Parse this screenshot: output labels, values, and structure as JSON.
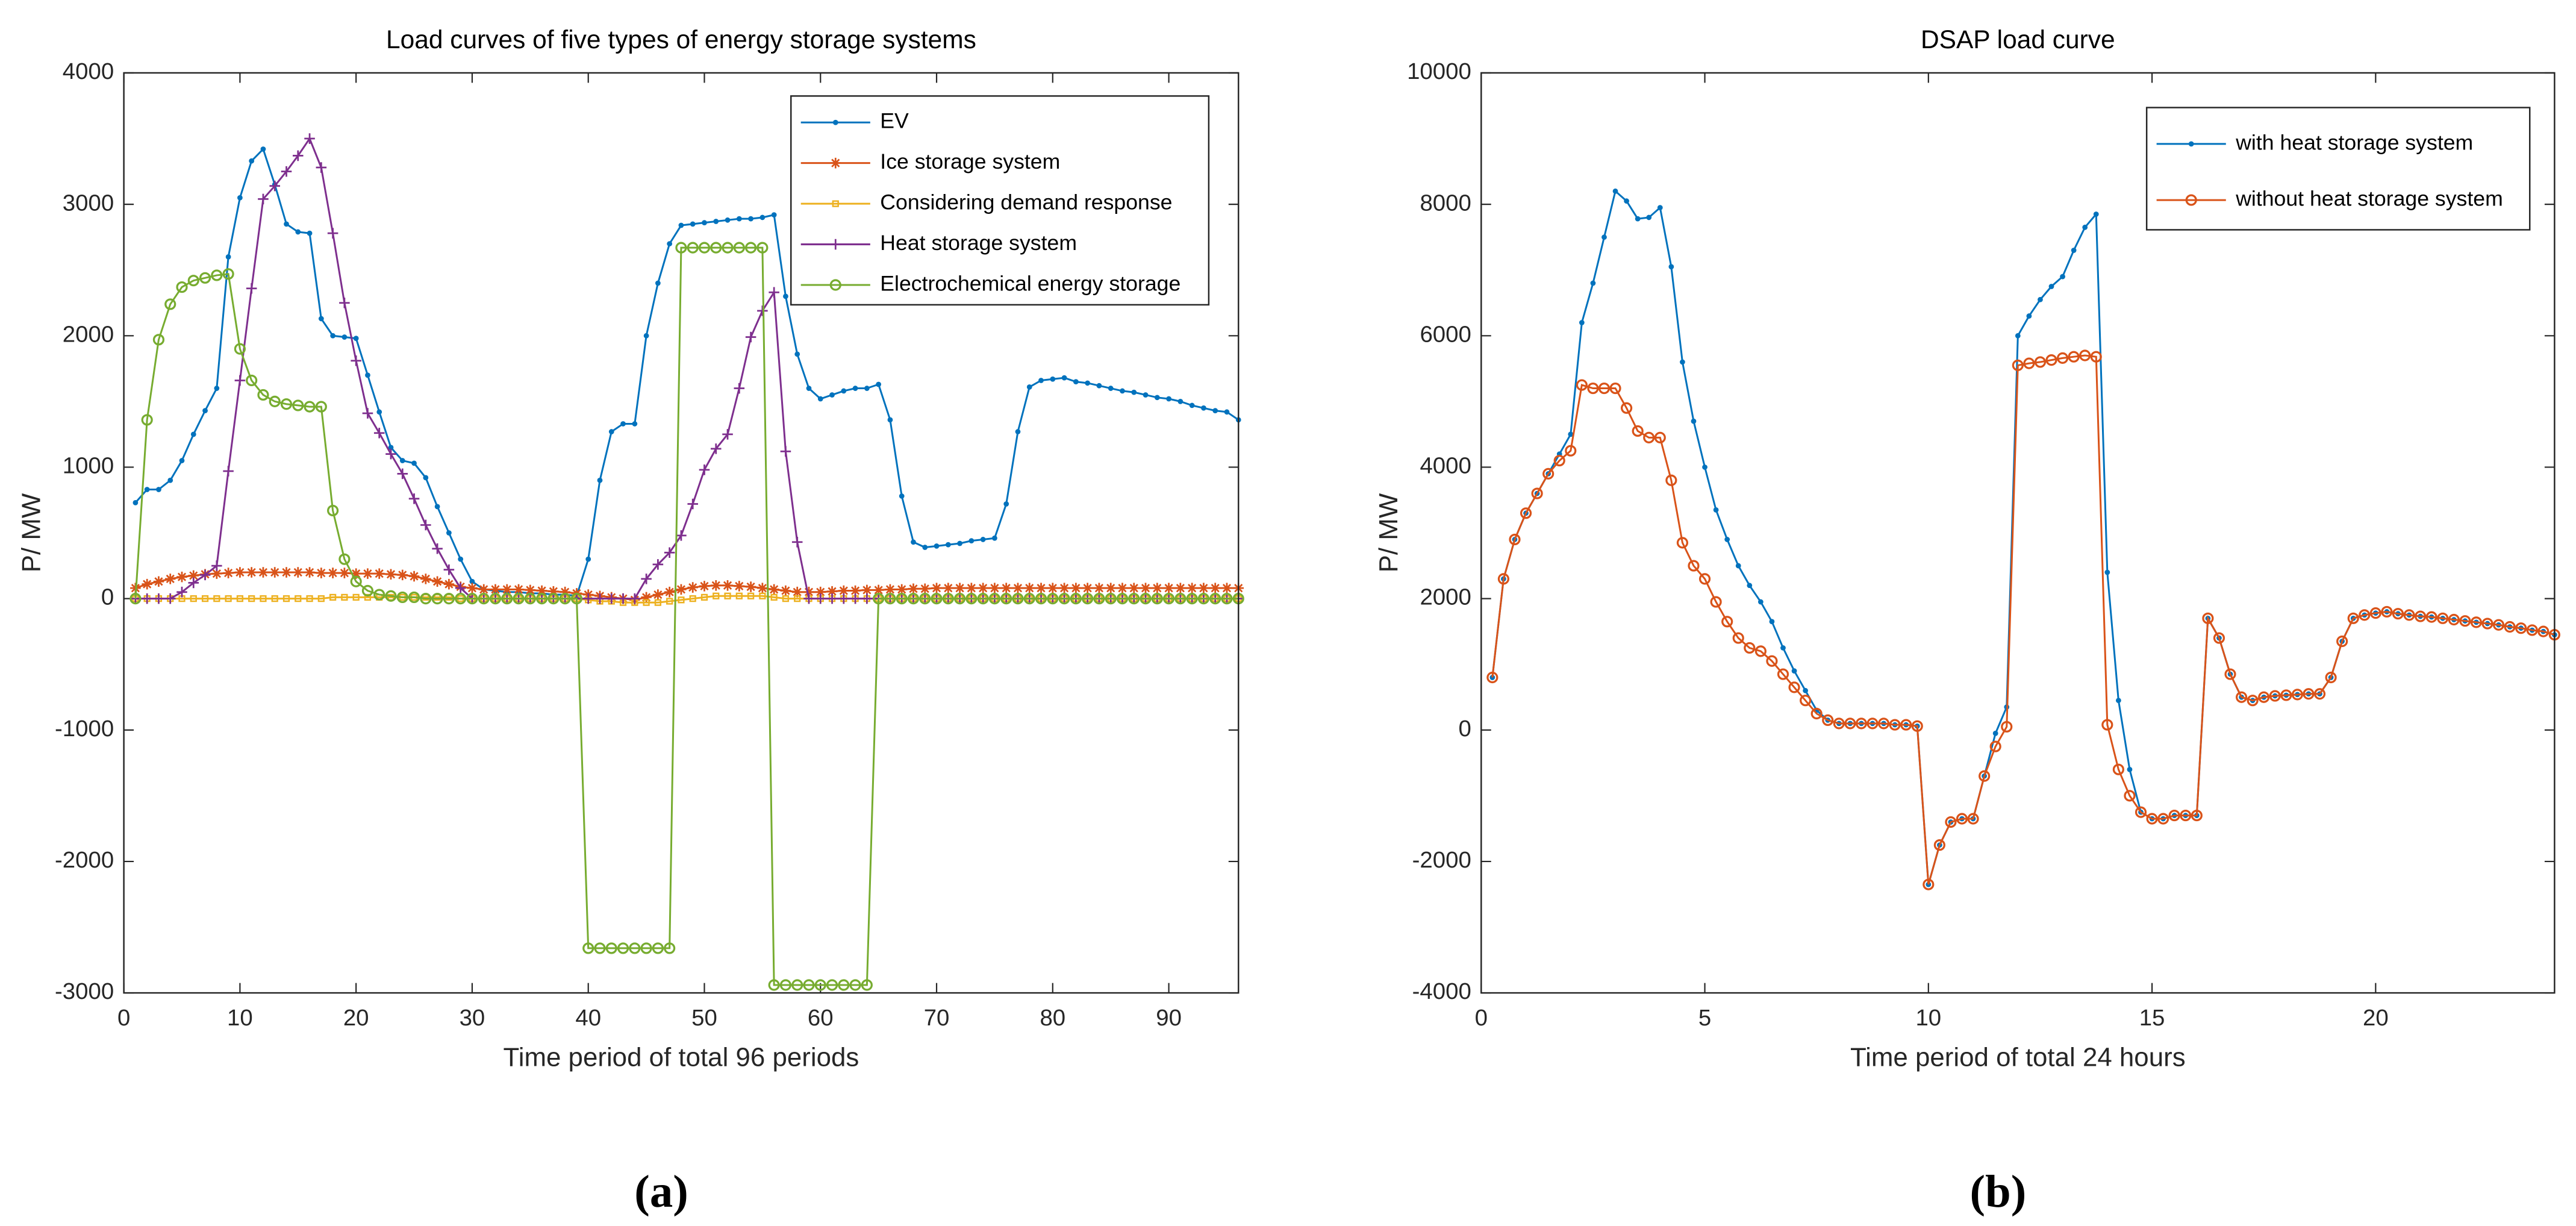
{
  "chart_data": [
    {
      "type": "line",
      "title": "Load curves of five types of energy storage systems",
      "xlabel": "Time period of total 96 periods",
      "ylabel": "P/ MW",
      "panel_label": "(a)",
      "xlim": [
        0,
        96
      ],
      "xticks": [
        0,
        10,
        20,
        30,
        40,
        50,
        60,
        70,
        80,
        90
      ],
      "ylim": [
        -3000,
        4000
      ],
      "yticks": [
        -3000,
        -2000,
        -1000,
        0,
        1000,
        2000,
        3000,
        4000
      ],
      "legend": "upper right",
      "x": [
        1,
        2,
        3,
        4,
        5,
        6,
        7,
        8,
        9,
        10,
        11,
        12,
        13,
        14,
        15,
        16,
        17,
        18,
        19,
        20,
        21,
        22,
        23,
        24,
        25,
        26,
        27,
        28,
        29,
        30,
        31,
        32,
        33,
        34,
        35,
        36,
        37,
        38,
        39,
        40,
        41,
        42,
        43,
        44,
        45,
        46,
        47,
        48,
        49,
        50,
        51,
        52,
        53,
        54,
        55,
        56,
        57,
        58,
        59,
        60,
        61,
        62,
        63,
        64,
        65,
        66,
        67,
        68,
        69,
        70,
        71,
        72,
        73,
        74,
        75,
        76,
        77,
        78,
        79,
        80,
        81,
        82,
        83,
        84,
        85,
        86,
        87,
        88,
        89,
        90,
        91,
        92,
        93,
        94,
        95,
        96
      ],
      "series": [
        {
          "name": "EV",
          "color": "#0072BD",
          "marker": "dot",
          "values": [
            730,
            830,
            830,
            900,
            1050,
            1250,
            1430,
            1600,
            2600,
            3050,
            3330,
            3420,
            3150,
            2850,
            2790,
            2780,
            2130,
            2000,
            1990,
            1980,
            1700,
            1420,
            1150,
            1050,
            1030,
            920,
            700,
            500,
            300,
            130,
            70,
            60,
            50,
            50,
            40,
            40,
            30,
            30,
            20,
            300,
            900,
            1270,
            1330,
            1330,
            2000,
            2400,
            2700,
            2840,
            2850,
            2860,
            2870,
            2880,
            2890,
            2890,
            2900,
            2920,
            2300,
            1860,
            1600,
            1520,
            1550,
            1580,
            1600,
            1600,
            1630,
            1360,
            780,
            430,
            390,
            400,
            410,
            420,
            440,
            450,
            460,
            720,
            1270,
            1610,
            1660,
            1670,
            1680,
            1650,
            1640,
            1620,
            1600,
            1580,
            1570,
            1550,
            1530,
            1520,
            1500,
            1470,
            1450,
            1430,
            1420,
            1360
          ]
        },
        {
          "name": "Ice storage system",
          "color": "#D95319",
          "marker": "star",
          "values": [
            80,
            110,
            130,
            150,
            165,
            175,
            185,
            190,
            195,
            200,
            200,
            200,
            200,
            200,
            200,
            200,
            195,
            195,
            195,
            190,
            190,
            190,
            185,
            180,
            170,
            150,
            130,
            110,
            90,
            80,
            70,
            70,
            70,
            70,
            65,
            60,
            55,
            50,
            40,
            30,
            20,
            10,
            0,
            -10,
            10,
            30,
            50,
            70,
            85,
            95,
            100,
            100,
            95,
            90,
            80,
            70,
            60,
            50,
            50,
            50,
            55,
            60,
            60,
            65,
            65,
            70,
            70,
            75,
            75,
            80,
            80,
            80,
            80,
            80,
            80,
            80,
            80,
            80,
            80,
            80,
            80,
            80,
            80,
            80,
            80,
            80,
            80,
            80,
            80,
            80,
            80,
            80,
            80,
            80,
            80,
            80
          ]
        },
        {
          "name": "Considering demand response",
          "color": "#EDB120",
          "marker": "square",
          "values": [
            0,
            0,
            0,
            0,
            0,
            0,
            0,
            0,
            0,
            0,
            0,
            0,
            0,
            0,
            0,
            0,
            0,
            10,
            10,
            10,
            10,
            10,
            10,
            10,
            10,
            10,
            10,
            10,
            0,
            0,
            0,
            0,
            0,
            0,
            0,
            0,
            0,
            0,
            0,
            -10,
            -20,
            -20,
            -30,
            -30,
            -30,
            -30,
            -20,
            -10,
            0,
            10,
            20,
            20,
            20,
            20,
            20,
            10,
            0,
            0,
            0,
            0,
            0,
            0,
            0,
            0,
            0,
            0,
            0,
            0,
            0,
            0,
            0,
            0,
            0,
            0,
            0,
            0,
            0,
            0,
            0,
            0,
            0,
            0,
            0,
            0,
            0,
            0,
            0,
            0,
            0,
            0,
            0,
            0,
            0,
            0,
            0,
            0
          ]
        },
        {
          "name": "Heat storage system",
          "color": "#7E2F8E",
          "marker": "plus",
          "values": [
            0,
            0,
            0,
            0,
            50,
            120,
            180,
            250,
            970,
            1660,
            2360,
            3040,
            3140,
            3250,
            3370,
            3500,
            3280,
            2780,
            2250,
            1810,
            1410,
            1260,
            1100,
            950,
            760,
            560,
            380,
            220,
            80,
            0,
            0,
            0,
            0,
            0,
            0,
            0,
            0,
            0,
            0,
            0,
            0,
            0,
            0,
            0,
            150,
            260,
            350,
            480,
            720,
            980,
            1140,
            1250,
            1600,
            1990,
            2190,
            2330,
            1120,
            430,
            0,
            0,
            0,
            0,
            0,
            0,
            0,
            0,
            0,
            0,
            0,
            0,
            0,
            0,
            0,
            0,
            0,
            0,
            0,
            0,
            0,
            0,
            0,
            0,
            0,
            0,
            0,
            0,
            0,
            0,
            0,
            0,
            0,
            0,
            0,
            0,
            0,
            0
          ]
        },
        {
          "name": "Electrochemical energy storage",
          "color": "#77AC30",
          "marker": "circle",
          "values": [
            0,
            1360,
            1970,
            2240,
            2370,
            2420,
            2440,
            2460,
            2470,
            1900,
            1660,
            1550,
            1500,
            1480,
            1470,
            1460,
            1460,
            670,
            300,
            130,
            60,
            30,
            20,
            10,
            10,
            0,
            0,
            0,
            0,
            0,
            0,
            0,
            0,
            0,
            0,
            0,
            0,
            0,
            0,
            -2660,
            -2660,
            -2660,
            -2660,
            -2660,
            -2660,
            -2660,
            -2660,
            2670,
            2670,
            2670,
            2670,
            2670,
            2670,
            2670,
            2670,
            -2940,
            -2940,
            -2940,
            -2940,
            -2940,
            -2940,
            -2940,
            -2940,
            -2940,
            0,
            0,
            0,
            0,
            0,
            0,
            0,
            0,
            0,
            0,
            0,
            0,
            0,
            0,
            0,
            0,
            0,
            0,
            0,
            0,
            0,
            0,
            0,
            0,
            0,
            0,
            0,
            0,
            0,
            0,
            0,
            0
          ]
        }
      ]
    },
    {
      "type": "line",
      "title": "DSAP load curve",
      "xlabel": "Time period of total 24 hours",
      "ylabel": "P/ MW",
      "panel_label": "(b)",
      "xlim": [
        0,
        24
      ],
      "xticks": [
        0,
        5,
        10,
        15,
        20
      ],
      "ylim": [
        -4000,
        10000
      ],
      "yticks": [
        -4000,
        -2000,
        0,
        2000,
        4000,
        6000,
        8000,
        10000
      ],
      "legend": "upper right",
      "x": [
        0.25,
        0.5,
        0.75,
        1,
        1.25,
        1.5,
        1.75,
        2,
        2.25,
        2.5,
        2.75,
        3,
        3.25,
        3.5,
        3.75,
        4,
        4.25,
        4.5,
        4.75,
        5,
        5.25,
        5.5,
        5.75,
        6,
        6.25,
        6.5,
        6.75,
        7,
        7.25,
        7.5,
        7.75,
        8,
        8.25,
        8.5,
        8.75,
        9,
        9.25,
        9.5,
        9.75,
        10,
        10.25,
        10.5,
        10.75,
        11,
        11.25,
        11.5,
        11.75,
        12,
        12.25,
        12.5,
        12.75,
        13,
        13.25,
        13.5,
        13.75,
        14,
        14.25,
        14.5,
        14.75,
        15,
        15.25,
        15.5,
        15.75,
        16,
        16.25,
        16.5,
        16.75,
        17,
        17.25,
        17.5,
        17.75,
        18,
        18.25,
        18.5,
        18.75,
        19,
        19.25,
        19.5,
        19.75,
        20,
        20.25,
        20.5,
        20.75,
        21,
        21.25,
        21.5,
        21.75,
        22,
        22.25,
        22.5,
        22.75,
        23,
        23.25,
        23.5,
        23.75,
        24
      ],
      "series": [
        {
          "name": "with heat storage system",
          "color": "#0072BD",
          "marker": "dot",
          "values": [
            800,
            2300,
            2900,
            3300,
            3600,
            3900,
            4200,
            4500,
            6200,
            6800,
            7500,
            8200,
            8050,
            7780,
            7800,
            7950,
            7050,
            5600,
            4700,
            4000,
            3350,
            2900,
            2500,
            2200,
            1950,
            1650,
            1250,
            900,
            600,
            300,
            150,
            100,
            100,
            100,
            100,
            100,
            80,
            80,
            60,
            -2350,
            -1750,
            -1400,
            -1350,
            -1350,
            -700,
            -50,
            350,
            6000,
            6300,
            6550,
            6750,
            6900,
            7300,
            7650,
            7850,
            2400,
            450,
            -600,
            -1250,
            -1350,
            -1350,
            -1300,
            -1300,
            -1300,
            1700,
            1400,
            850,
            500,
            450,
            500,
            520,
            530,
            540,
            550,
            550,
            800,
            1350,
            1700,
            1750,
            1780,
            1800,
            1770,
            1750,
            1730,
            1720,
            1700,
            1680,
            1660,
            1640,
            1620,
            1600,
            1570,
            1550,
            1520,
            1500,
            1450
          ]
        },
        {
          "name": "without heat storage system",
          "color": "#D95319",
          "marker": "circle",
          "values": [
            800,
            2300,
            2900,
            3300,
            3600,
            3900,
            4100,
            4250,
            5250,
            5200,
            5200,
            5200,
            4900,
            4550,
            4450,
            4450,
            3800,
            2850,
            2500,
            2300,
            1950,
            1650,
            1400,
            1250,
            1200,
            1050,
            850,
            650,
            450,
            250,
            150,
            100,
            100,
            100,
            100,
            100,
            80,
            80,
            60,
            -2350,
            -1750,
            -1400,
            -1350,
            -1350,
            -700,
            -250,
            50,
            5550,
            5580,
            5600,
            5630,
            5660,
            5680,
            5700,
            5680,
            80,
            -600,
            -1000,
            -1250,
            -1350,
            -1350,
            -1300,
            -1300,
            -1300,
            1700,
            1400,
            850,
            500,
            450,
            500,
            520,
            530,
            540,
            550,
            550,
            800,
            1350,
            1700,
            1750,
            1780,
            1800,
            1770,
            1750,
            1730,
            1720,
            1700,
            1680,
            1660,
            1640,
            1620,
            1600,
            1570,
            1550,
            1520,
            1500,
            1450
          ]
        }
      ]
    }
  ]
}
